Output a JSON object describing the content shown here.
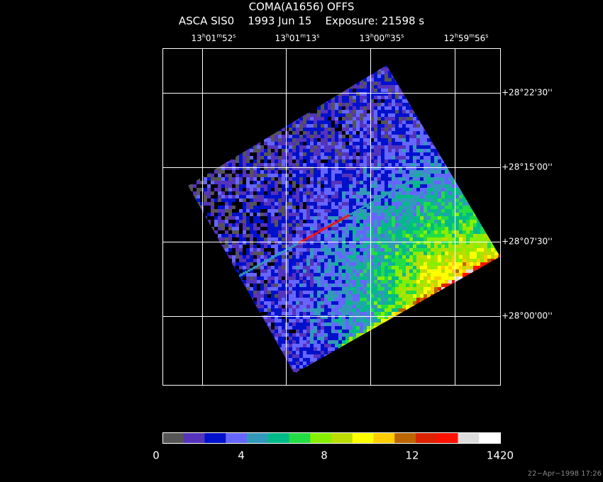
{
  "header": {
    "title": "COMA(A1656) OFFS",
    "subtitle": "ASCA SIS0    1993 Jun 15    Exposure: 21598 s"
  },
  "ra_ticks": [
    [
      "13",
      "h",
      "01",
      "m",
      "52",
      "s"
    ],
    [
      "13",
      "h",
      "01",
      "m",
      "13",
      "s"
    ],
    [
      "13",
      "h",
      "00",
      "m",
      "35",
      "s"
    ],
    [
      "12",
      "h",
      "59",
      "m",
      "56",
      "s"
    ]
  ],
  "dec_ticks": [
    "+28°22'30''",
    "+28°15'00''",
    "+28°07'30''",
    "+28°00'00''"
  ],
  "colorbar": {
    "colors": [
      "#555555",
      "#5533bb",
      "#0011cc",
      "#6666ff",
      "#3399bb",
      "#00bb88",
      "#22dd44",
      "#88ee00",
      "#bbdd00",
      "#ffff00",
      "#ffcc00",
      "#bb6600",
      "#dd2200",
      "#ff1100",
      "#dddddd",
      "#ffffff"
    ],
    "labels": [
      "0",
      "4",
      "8",
      "12",
      "1420"
    ]
  },
  "timestamp": "22−Apr−1998 17:26"
}
